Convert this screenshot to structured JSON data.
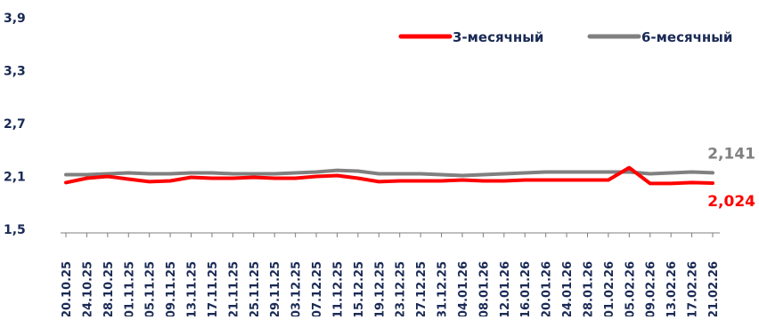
{
  "chart_data": {
    "type": "line",
    "title": "",
    "xlabel": "",
    "ylabel": "",
    "ylim": [
      1.5,
      3.9
    ],
    "yticks": [
      {
        "value": 1.5,
        "label": "1,5"
      },
      {
        "value": 2.1,
        "label": "2,1"
      },
      {
        "value": 2.7,
        "label": "2,7"
      },
      {
        "value": 3.3,
        "label": "3,3"
      },
      {
        "value": 3.9,
        "label": "3,9"
      }
    ],
    "x": [
      "20.10.25",
      "24.10.25",
      "28.10.25",
      "01.11.25",
      "05.11.25",
      "09.11.25",
      "13.11.25",
      "17.11.25",
      "21.11.25",
      "25.11.25",
      "29.11.25",
      "03.12.25",
      "07.12.25",
      "11.12.25",
      "15.12.25",
      "19.12.25",
      "23.12.25",
      "27.12.25",
      "31.12.25",
      "04.01.26",
      "08.01.26",
      "12.01.26",
      "16.01.26",
      "20.01.26",
      "24.01.26",
      "28.01.26",
      "01.02.26",
      "05.02.26",
      "09.02.26",
      "13.02.26",
      "17.02.26",
      "21.02.26"
    ],
    "legend_position": "top-right",
    "grid": false,
    "series": [
      {
        "name": "3-месячный",
        "color": "#ff0000",
        "values": [
          2.03,
          2.08,
          2.1,
          2.07,
          2.04,
          2.05,
          2.09,
          2.08,
          2.08,
          2.09,
          2.08,
          2.08,
          2.1,
          2.11,
          2.08,
          2.04,
          2.05,
          2.05,
          2.05,
          2.06,
          2.05,
          2.05,
          2.06,
          2.06,
          2.06,
          2.06,
          2.06,
          2.2,
          2.02,
          2.02,
          2.03,
          2.024
        ],
        "end_label": "2,024"
      },
      {
        "name": "6-месячный",
        "color": "#808080",
        "values": [
          2.12,
          2.12,
          2.13,
          2.14,
          2.13,
          2.13,
          2.14,
          2.14,
          2.13,
          2.13,
          2.13,
          2.14,
          2.15,
          2.17,
          2.16,
          2.13,
          2.13,
          2.13,
          2.12,
          2.11,
          2.12,
          2.13,
          2.14,
          2.15,
          2.15,
          2.15,
          2.15,
          2.15,
          2.13,
          2.14,
          2.15,
          2.141
        ],
        "end_label": "2,141"
      }
    ]
  }
}
